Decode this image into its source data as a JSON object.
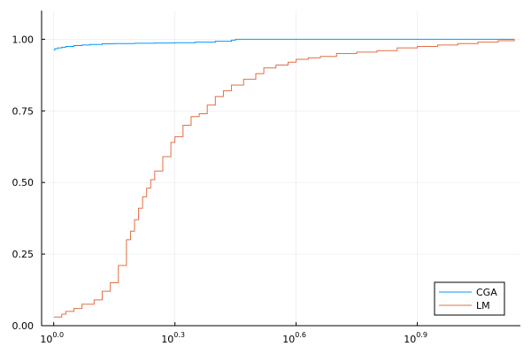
{
  "chart_data": {
    "type": "line",
    "title": "",
    "xlabel": "",
    "ylabel": "",
    "x_scale": "log10",
    "xlim_exponent": [
      -0.03,
      1.155
    ],
    "ylim": [
      0,
      1.1
    ],
    "grid": true,
    "legend_position": "bottom-right",
    "x_ticks": [
      {
        "base": "10",
        "exp": "0.0",
        "value": 0.0
      },
      {
        "base": "10",
        "exp": "0.3",
        "value": 0.3
      },
      {
        "base": "10",
        "exp": "0.6",
        "value": 0.6
      },
      {
        "base": "10",
        "exp": "0.9",
        "value": 0.9
      }
    ],
    "y_ticks": [
      {
        "label": "0.00",
        "value": 0.0
      },
      {
        "label": "0.25",
        "value": 0.25
      },
      {
        "label": "0.50",
        "value": 0.5
      },
      {
        "label": "0.75",
        "value": 0.75
      },
      {
        "label": "1.00",
        "value": 1.0
      }
    ],
    "series": [
      {
        "name": "CGA",
        "color": "#009AFA",
        "x_exponent": [
          0.0,
          0.003,
          0.01,
          0.02,
          0.03,
          0.05,
          0.07,
          0.09,
          0.12,
          0.15,
          0.2,
          0.25,
          0.3,
          0.35,
          0.4,
          0.44,
          0.45,
          0.6,
          0.8,
          1.0,
          1.14
        ],
        "y": [
          0.963,
          0.967,
          0.97,
          0.972,
          0.975,
          0.978,
          0.98,
          0.982,
          0.984,
          0.985,
          0.986,
          0.987,
          0.988,
          0.99,
          0.993,
          0.997,
          1.0,
          1.0,
          1.0,
          1.0,
          1.0
        ]
      },
      {
        "name": "LM",
        "color": "#E26F46",
        "x_exponent": [
          0.0,
          0.015,
          0.02,
          0.03,
          0.05,
          0.07,
          0.1,
          0.12,
          0.14,
          0.16,
          0.18,
          0.19,
          0.2,
          0.21,
          0.22,
          0.23,
          0.24,
          0.25,
          0.27,
          0.29,
          0.3,
          0.32,
          0.34,
          0.36,
          0.38,
          0.4,
          0.42,
          0.44,
          0.47,
          0.5,
          0.52,
          0.55,
          0.58,
          0.6,
          0.63,
          0.66,
          0.7,
          0.75,
          0.8,
          0.85,
          0.9,
          0.95,
          1.0,
          1.05,
          1.1,
          1.14
        ],
        "y": [
          0.03,
          0.03,
          0.04,
          0.05,
          0.06,
          0.075,
          0.09,
          0.12,
          0.15,
          0.21,
          0.3,
          0.33,
          0.37,
          0.41,
          0.45,
          0.48,
          0.51,
          0.54,
          0.59,
          0.64,
          0.66,
          0.7,
          0.73,
          0.74,
          0.77,
          0.8,
          0.82,
          0.84,
          0.86,
          0.88,
          0.9,
          0.91,
          0.92,
          0.93,
          0.935,
          0.94,
          0.95,
          0.955,
          0.96,
          0.97,
          0.975,
          0.98,
          0.985,
          0.99,
          0.995,
          1.0
        ]
      }
    ]
  }
}
